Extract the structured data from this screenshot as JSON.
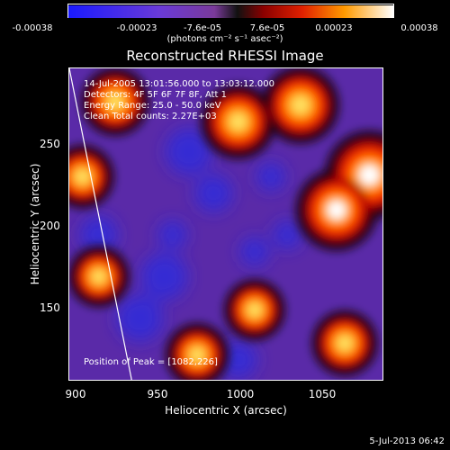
{
  "colorbar": {
    "tick_labels": [
      "-0.00038",
      "-0.00023",
      "-7.6e-05",
      "7.6e-05",
      "0.00023",
      "0.00038"
    ],
    "unit_label": "(photons cm⁻² s⁻¹ asec⁻²)",
    "range": [
      -0.00038,
      0.00038
    ]
  },
  "chart_data": {
    "type": "heatmap",
    "title": "Reconstructed RHESSI Image",
    "xlabel": "Heliocentric X (arcsec)",
    "ylabel": "Heliocentric Y (arcsec)",
    "xlim": [
      897,
      1088
    ],
    "ylim": [
      103,
      290
    ],
    "xticks": [
      900,
      950,
      1000,
      1050
    ],
    "yticks": [
      150,
      200,
      250
    ],
    "annotations": [
      "14-Jul-2005 13:01:56.000 to 13:03:12.000",
      "Detectors: 4F 5F 6F 7F 8F, Att 1",
      "Energy Range: 25.0 - 50.0 keV",
      "Clean     Total counts: 2.27E+03"
    ],
    "peak_label": "Position of Peak = [1082,226]",
    "peak_position": [
      1082,
      226
    ],
    "limb_line": [
      [
        897,
        290
      ],
      [
        935,
        103
      ]
    ],
    "bright_sources": [
      {
        "x": 1080,
        "y": 226,
        "level": 1.0
      },
      {
        "x": 1060,
        "y": 205,
        "level": 0.85
      },
      {
        "x": 1038,
        "y": 268,
        "level": 0.75
      },
      {
        "x": 1000,
        "y": 258,
        "level": 0.7
      },
      {
        "x": 925,
        "y": 270,
        "level": 0.55
      },
      {
        "x": 905,
        "y": 225,
        "level": 0.45
      },
      {
        "x": 915,
        "y": 165,
        "level": 0.4
      },
      {
        "x": 1065,
        "y": 125,
        "level": 0.5
      },
      {
        "x": 975,
        "y": 118,
        "level": 0.45
      },
      {
        "x": 1010,
        "y": 145,
        "level": 0.4
      }
    ]
  },
  "timestamp": "5-Jul-2013 06:42"
}
